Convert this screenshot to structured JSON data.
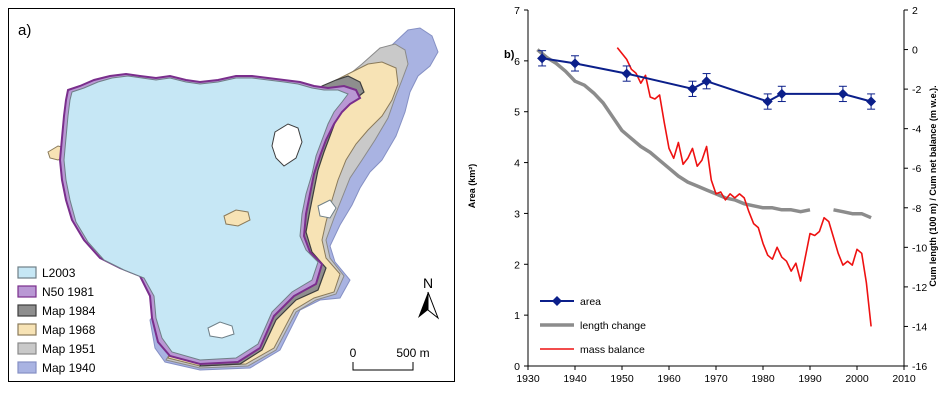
{
  "map": {
    "panel_label": "a)",
    "north_label": "N",
    "scale": {
      "zero": "0",
      "end": "500 m"
    },
    "legend": [
      {
        "label": "L2003",
        "fill": "#c6e7f5",
        "stroke": "#6f7f87"
      },
      {
        "label": "N50 1981",
        "fill": "#b998d4",
        "stroke": "#7a2e8c"
      },
      {
        "label": "Map 1984",
        "fill": "#8e8e8e",
        "stroke": "#3d3d3d"
      },
      {
        "label": "Map 1968",
        "fill": "#f7e3b5",
        "stroke": "#8a7a5a"
      },
      {
        "label": "Map 1951",
        "fill": "#c9c9c9",
        "stroke": "#8a8a8a"
      },
      {
        "label": "Map 1940",
        "fill": "#a9b3e2",
        "stroke": "#8590c4"
      }
    ]
  },
  "chart_data": {
    "type": "line",
    "panel_label": "b)",
    "xlabel": "",
    "ylabel_left": "Area (km²)",
    "ylabel_right": "Cum length  (100 m) / Cum net balance (m w.e.).",
    "xlim": [
      1930,
      2010
    ],
    "xticks": [
      1930,
      1940,
      1950,
      1960,
      1970,
      1980,
      1990,
      2000,
      2010
    ],
    "ylim_left": [
      0,
      7
    ],
    "yticks_left": [
      0,
      1,
      2,
      3,
      4,
      5,
      6,
      7
    ],
    "ylim_right": [
      -16,
      2
    ],
    "yticks_right": [
      2,
      0,
      -2,
      -4,
      -6,
      -8,
      -10,
      -12,
      -14,
      -16
    ],
    "legend_position": "lower-left",
    "series": [
      {
        "name": "area",
        "axis": "left",
        "color": "#0b1f8a",
        "width": 2,
        "marker": "diamond",
        "x": [
          1933,
          1940,
          1951,
          1965,
          1968,
          1981,
          1984,
          1997,
          2003
        ],
        "y": [
          6.05,
          5.95,
          5.75,
          5.45,
          5.6,
          5.2,
          5.35,
          5.35,
          5.2
        ],
        "err": [
          0.15,
          0.15,
          0.15,
          0.15,
          0.15,
          0.15,
          0.15,
          0.15,
          0.15
        ]
      },
      {
        "name": "length change",
        "axis": "right",
        "color": "#8c8c8c",
        "width": 3.5,
        "segments": [
          {
            "x": [
              1932,
              1934,
              1936,
              1938,
              1940,
              1942,
              1944,
              1946,
              1948,
              1950,
              1952,
              1954,
              1956,
              1958,
              1960,
              1962,
              1964,
              1966,
              1968,
              1970,
              1972,
              1974,
              1976,
              1978,
              1980,
              1982,
              1984,
              1986,
              1988,
              1990
            ],
            "y": [
              0.0,
              -0.4,
              -0.7,
              -1.1,
              -1.6,
              -1.8,
              -2.2,
              -2.7,
              -3.4,
              -4.1,
              -4.5,
              -4.9,
              -5.2,
              -5.6,
              -6.0,
              -6.4,
              -6.7,
              -6.9,
              -7.1,
              -7.3,
              -7.5,
              -7.6,
              -7.8,
              -7.9,
              -8.0,
              -8.0,
              -8.1,
              -8.1,
              -8.2,
              -8.1
            ]
          },
          {
            "x": [
              1995,
              1997,
              1999,
              2001,
              2003
            ],
            "y": [
              -8.1,
              -8.2,
              -8.3,
              -8.3,
              -8.5
            ]
          }
        ]
      },
      {
        "name": "mass balance",
        "axis": "right",
        "color": "#ee1111",
        "width": 1.6,
        "x": [
          1949,
          1950,
          1951,
          1952,
          1953,
          1954,
          1955,
          1956,
          1957,
          1958,
          1959,
          1960,
          1961,
          1962,
          1963,
          1964,
          1965,
          1966,
          1967,
          1968,
          1969,
          1970,
          1971,
          1972,
          1973,
          1974,
          1975,
          1976,
          1977,
          1978,
          1979,
          1980,
          1981,
          1982,
          1983,
          1984,
          1985,
          1986,
          1987,
          1988,
          1989,
          1990,
          1991,
          1992,
          1993,
          1994,
          1995,
          1996,
          1997,
          1998,
          1999,
          2000,
          2001,
          2002,
          2003
        ],
        "y": [
          0.1,
          -0.2,
          -0.5,
          -1.0,
          -1.2,
          -1.7,
          -1.3,
          -2.4,
          -2.5,
          -2.3,
          -3.7,
          -5.0,
          -5.5,
          -4.7,
          -5.8,
          -5.5,
          -5.0,
          -5.9,
          -5.6,
          -4.9,
          -6.6,
          -7.3,
          -7.2,
          -7.6,
          -7.3,
          -7.5,
          -7.3,
          -7.5,
          -8.2,
          -8.8,
          -9.0,
          -9.8,
          -10.4,
          -10.6,
          -10.0,
          -10.5,
          -10.7,
          -11.2,
          -10.8,
          -11.7,
          -10.5,
          -9.3,
          -9.4,
          -9.2,
          -8.5,
          -8.7,
          -9.5,
          -10.3,
          -10.9,
          -10.7,
          -10.9,
          -10.1,
          -10.3,
          -11.8,
          -14.0
        ]
      }
    ]
  }
}
